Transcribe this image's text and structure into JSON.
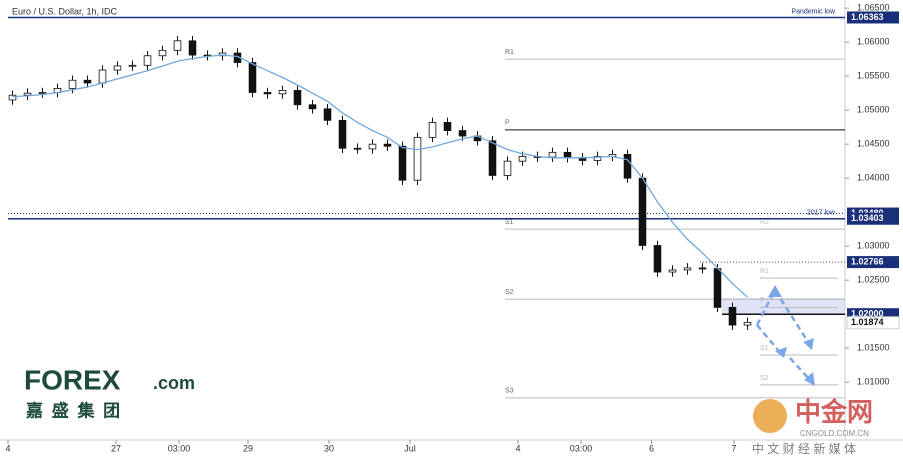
{
  "chart_data": {
    "type": "candlestick",
    "title": "Euro / U.S. Dollar, 1h, IDC",
    "x": [
      0,
      1,
      2,
      3,
      4,
      5,
      6,
      7,
      8,
      9,
      10,
      11,
      12,
      13,
      14,
      15,
      16,
      17,
      18,
      19,
      20,
      21,
      22,
      23,
      24,
      25,
      26,
      27,
      28,
      29,
      30,
      31,
      32,
      33,
      34,
      35,
      36,
      37,
      38,
      39,
      40,
      41,
      42,
      43,
      44,
      45,
      46,
      47,
      48,
      49
    ],
    "open": [
      1.0515,
      1.0522,
      1.0525,
      1.0526,
      1.0532,
      1.0544,
      1.054,
      1.0559,
      1.0565,
      1.0566,
      1.058,
      1.0588,
      1.0602,
      1.0581,
      1.058,
      1.0584,
      1.057,
      1.0526,
      1.0524,
      1.0529,
      1.0508,
      1.0502,
      1.0485,
      1.0444,
      1.0443,
      1.045,
      1.0447,
      1.0397,
      1.046,
      1.0482,
      1.047,
      1.0462,
      1.0455,
      1.0404,
      1.0425,
      1.0432,
      1.0431,
      1.0438,
      1.043,
      1.0426,
      1.0432,
      1.0435,
      1.04,
      1.0301,
      1.0262,
      1.0265,
      1.0268,
      1.0267,
      1.021,
      1.0184
    ],
    "high": [
      1.0529,
      1.0532,
      1.0533,
      1.0539,
      1.0551,
      1.0551,
      1.0566,
      1.0572,
      1.0573,
      1.0587,
      1.0595,
      1.0609,
      1.0609,
      1.0588,
      1.0591,
      1.0591,
      1.0577,
      1.0533,
      1.0536,
      1.0536,
      1.0515,
      1.0509,
      1.0492,
      1.0451,
      1.0457,
      1.0457,
      1.0454,
      1.0467,
      1.0489,
      1.0489,
      1.0477,
      1.0469,
      1.0462,
      1.0432,
      1.0439,
      1.0439,
      1.0445,
      1.0445,
      1.0437,
      1.0439,
      1.0442,
      1.0442,
      1.0407,
      1.0308,
      1.0272,
      1.0275,
      1.0275,
      1.0274,
      1.0217,
      1.0195
    ],
    "low": [
      1.0508,
      1.0515,
      1.0518,
      1.0519,
      1.0525,
      1.0533,
      1.0533,
      1.0552,
      1.0558,
      1.0559,
      1.0573,
      1.0581,
      1.0574,
      1.0573,
      1.0573,
      1.0563,
      1.0519,
      1.0517,
      1.0517,
      1.0501,
      1.0495,
      1.0478,
      1.0437,
      1.0436,
      1.0436,
      1.044,
      1.039,
      1.039,
      1.0453,
      1.0463,
      1.0455,
      1.0448,
      1.0397,
      1.0397,
      1.0418,
      1.0424,
      1.0424,
      1.0423,
      1.0419,
      1.0419,
      1.0425,
      1.0393,
      1.0294,
      1.0255,
      1.0255,
      1.0258,
      1.026,
      1.0203,
      1.0177,
      1.0177
    ],
    "close": [
      1.0522,
      1.0525,
      1.0526,
      1.0532,
      1.0544,
      1.054,
      1.0559,
      1.0565,
      1.0566,
      1.058,
      1.0588,
      1.0602,
      1.0581,
      1.058,
      1.0584,
      1.057,
      1.0526,
      1.0524,
      1.0529,
      1.0508,
      1.0502,
      1.0485,
      1.0444,
      1.0443,
      1.045,
      1.0447,
      1.0397,
      1.046,
      1.0482,
      1.047,
      1.0462,
      1.0455,
      1.0404,
      1.0425,
      1.0432,
      1.0431,
      1.0438,
      1.043,
      1.0426,
      1.0432,
      1.0435,
      1.04,
      1.0301,
      1.0262,
      1.0265,
      1.0268,
      1.0267,
      1.021,
      1.0184,
      1.0188
    ],
    "up_color": "#ffffff",
    "down_color": "#111111",
    "moving_average": {
      "color": "#6fa8dc",
      "values": [
        1.052,
        1.0521,
        1.0523,
        1.0526,
        1.053,
        1.0534,
        1.054,
        1.0546,
        1.0552,
        1.0558,
        1.0565,
        1.0572,
        1.0576,
        1.0579,
        1.0581,
        1.0579,
        1.0568,
        1.0558,
        1.0548,
        1.0537,
        1.0525,
        1.0513,
        1.0496,
        1.0482,
        1.047,
        1.046,
        1.0445,
        1.0442,
        1.0446,
        1.0452,
        1.0458,
        1.0462,
        1.0452,
        1.0442,
        1.0436,
        1.0432,
        1.043,
        1.043,
        1.043,
        1.0431,
        1.0432,
        1.0427,
        1.04,
        1.0365,
        1.0335,
        1.031,
        1.029,
        1.0268,
        1.0245,
        1.0225
      ]
    },
    "xlim": [
      -0.3,
      55.5
    ],
    "xticks": [
      {
        "value": -0.3,
        "label": "4"
      },
      {
        "value": 6.9,
        "label": "27"
      },
      {
        "value": 11.1,
        "label": "03:00"
      },
      {
        "value": 15.7,
        "label": "29"
      },
      {
        "value": 21.1,
        "label": "30"
      },
      {
        "value": 26.5,
        "label": "Jul"
      },
      {
        "value": 33.7,
        "label": "4"
      },
      {
        "value": 37.9,
        "label": "03:00"
      },
      {
        "value": 42.6,
        "label": "6"
      },
      {
        "value": 48.1,
        "label": "7"
      }
    ],
    "ylim": [
      1.0015,
      1.0662
    ],
    "yticks": [
      {
        "value": 1.065,
        "label": "1.06500"
      },
      {
        "value": 1.06,
        "label": "1.06000"
      },
      {
        "value": 1.055,
        "label": "1.05500"
      },
      {
        "value": 1.05,
        "label": "1.05000"
      },
      {
        "value": 1.045,
        "label": "1.04500"
      },
      {
        "value": 1.04,
        "label": "1.04000"
      },
      {
        "value": 1.03,
        "label": "1.03000"
      },
      {
        "value": 1.025,
        "label": "1.02500"
      },
      {
        "value": 1.015,
        "label": "1.01500"
      },
      {
        "value": 1.01,
        "label": "1.01000"
      }
    ],
    "levels": [
      {
        "value": 1.06363,
        "label": "1.06363",
        "note": "Pandemic low",
        "color": "#1a2f7a"
      },
      {
        "value": 1.0348,
        "label": "1.03480",
        "color": "#1a2f7a"
      },
      {
        "value": 1.03403,
        "label": "1.03403",
        "note": "2017 low",
        "color": "#1a2f7a"
      },
      {
        "value": 1.02766,
        "label": "1.02766",
        "color": "#1a2f7a"
      },
      {
        "value": 1.02,
        "label": "1.02000",
        "color": "#1a2f7a"
      },
      {
        "value": 1.01874,
        "label": "1.01874",
        "color": "#ffffff"
      }
    ],
    "daily_pivots": [
      {
        "label": "R1",
        "value": 1.0575
      },
      {
        "label": "P",
        "value": 1.0471
      },
      {
        "label": "S1",
        "value": 1.0325
      },
      {
        "label": "S2",
        "value": 1.0222
      },
      {
        "label": "S3",
        "value": 1.0077
      }
    ],
    "session_pivots": [
      {
        "label": "R2",
        "value": 1.0325
      },
      {
        "label": "R1",
        "value": 1.0253
      },
      {
        "label": "P",
        "value": 1.021
      },
      {
        "label": "S1",
        "value": 1.014
      },
      {
        "label": "S2",
        "value": 1.0096
      }
    ]
  },
  "branding": {
    "logo": "FOREX",
    "logo_suffix": ".com",
    "logo_sub": "嘉 盛 集 团",
    "watermark": "中金网",
    "watermark_site": "CNGOLD.COM.CN",
    "watermark_sub": "中 文 财 经 新 媒 体"
  }
}
